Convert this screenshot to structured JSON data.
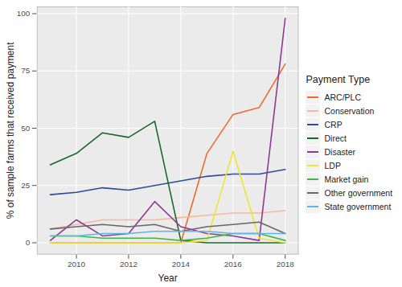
{
  "chart_data": {
    "type": "line",
    "x_label": "Year",
    "y_label": "% of sample farms that received payment",
    "legend_title": "Payment Type",
    "legend": "right",
    "grid": true,
    "x": [
      2009,
      2010,
      2011,
      2012,
      2013,
      2014,
      2015,
      2016,
      2017,
      2018
    ],
    "xlim": [
      2008.5,
      2018.5
    ],
    "xticks": [
      2010,
      2012,
      2014,
      2016,
      2018
    ],
    "ylim": [
      -5,
      103
    ],
    "yticks": [
      0,
      25,
      50,
      75,
      100
    ],
    "series": [
      {
        "name": "ARC/PLC",
        "color": "#ef6a2d",
        "values": [
          0,
          0,
          0,
          0,
          0,
          0,
          39,
          56,
          59,
          78
        ]
      },
      {
        "name": "Conservation",
        "color": "#f8b99b",
        "values": [
          6,
          8,
          10,
          10,
          10,
          11,
          12,
          13,
          13,
          14
        ]
      },
      {
        "name": "CRP",
        "color": "#2b4c9b",
        "values": [
          21,
          22,
          24,
          23,
          25,
          27,
          29,
          30,
          30,
          32
        ]
      },
      {
        "name": "Direct",
        "color": "#17682b",
        "values": [
          34,
          39,
          48,
          46,
          53,
          1,
          0,
          0,
          0,
          0
        ]
      },
      {
        "name": "Disaster",
        "color": "#8e3a95",
        "values": [
          1,
          10,
          3,
          4,
          18,
          7,
          4,
          3,
          1,
          98
        ]
      },
      {
        "name": "LDP",
        "color": "#eee533",
        "values": [
          0,
          0,
          0,
          0,
          0,
          0,
          1,
          40,
          2,
          0
        ]
      },
      {
        "name": "Market gain",
        "color": "#45b44a",
        "values": [
          3,
          3,
          2,
          2,
          2,
          1,
          2,
          4,
          4,
          1
        ]
      },
      {
        "name": "Other government",
        "color": "#676767",
        "values": [
          6,
          7,
          8,
          7,
          8,
          5,
          7,
          8,
          9,
          4
        ]
      },
      {
        "name": "State government",
        "color": "#5ab7e6",
        "values": [
          3,
          3,
          4,
          4,
          5,
          5,
          5,
          4,
          4,
          4
        ]
      }
    ]
  }
}
